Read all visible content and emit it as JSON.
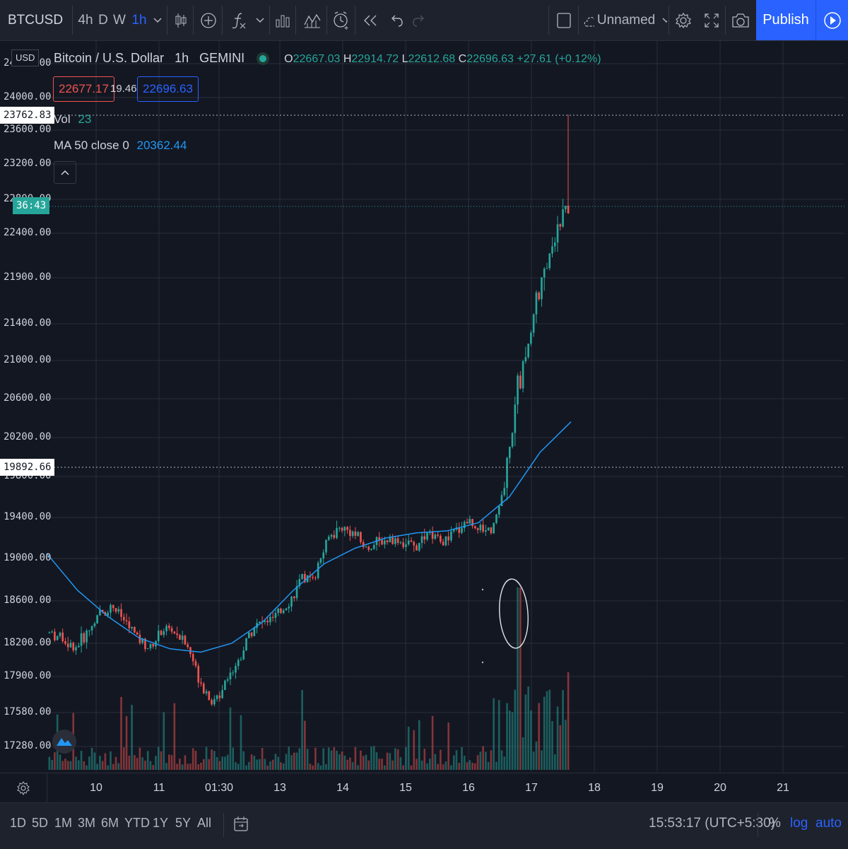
{
  "toolbar": {
    "symbol": "BTCUSD",
    "timeframes": [
      "4h",
      "D",
      "W",
      "1h"
    ],
    "active_timeframe": "1h",
    "icons": [
      "chevron-down-icon",
      "candles-icon",
      "add-compare-icon",
      "indicators-icon",
      "chevron-down-icon",
      "bar-chart-icon",
      "templates-icon",
      "alert-icon",
      "replay-icon",
      "undo-icon",
      "redo-icon"
    ],
    "layout_name": "Unnamed",
    "publish_label": "Publish"
  },
  "legend": {
    "title": "Bitcoin / U.S. Dollar",
    "interval": "1h",
    "exchange": "GEMINI",
    "o_label": "O",
    "o_value": "22667.03",
    "h_label": "H",
    "h_value": "22914.72",
    "l_label": "L",
    "l_value": "22612.68",
    "c_label": "C",
    "c_value": "22696.63",
    "change": "+27.61 (+0.12%)",
    "bid": "22677.17",
    "spread": "19.46",
    "ask": "22696.63",
    "vol_label": "Vol",
    "vol_value": "23",
    "ma_label": "MA 50 close 0",
    "ma_value": "20362.44"
  },
  "price_axis": {
    "currency": "USD",
    "ticks": [
      "24400.00",
      "24000.00",
      "23600.00",
      "23200.00",
      "22800.00",
      "22400.00",
      "21900.00",
      "21400.00",
      "21000.00",
      "20600.00",
      "20200.00",
      "19800.00",
      "19400.00",
      "19000.00",
      "18600.00",
      "18200.00",
      "17900.00",
      "17580.00",
      "17280.00"
    ],
    "high_marker": "23762.83",
    "low_marker": "19892.66",
    "countdown": "36:43"
  },
  "time_axis": {
    "labels": [
      "10",
      "11",
      "01:30",
      "13",
      "14",
      "15",
      "16",
      "17",
      "18",
      "19",
      "20",
      "21"
    ]
  },
  "bottom": {
    "ranges": [
      "1D",
      "5D",
      "1M",
      "3M",
      "6M",
      "YTD",
      "1Y",
      "5Y",
      "All"
    ],
    "clock": "15:53:17 (UTC+5:30)",
    "percent_label": "%",
    "log_label": "log",
    "auto_label": "auto"
  },
  "colors": {
    "up": "#26a69a",
    "down": "#ef5350",
    "ma": "#2196f3",
    "accent": "#2962ff",
    "countdown_bg": "#26a69a"
  },
  "chart_data": {
    "type": "candlestick",
    "title": "Bitcoin / U.S. Dollar",
    "interval": "1h",
    "exchange": "GEMINI",
    "x": [
      "10",
      "11",
      "01:30",
      "13",
      "14",
      "15",
      "16",
      "17",
      "18",
      "19",
      "20",
      "21"
    ],
    "ylim": [
      17100,
      24500
    ],
    "price_path": [
      18300,
      18250,
      18150,
      18300,
      18480,
      18550,
      18400,
      18250,
      18150,
      18350,
      18300,
      18150,
      17850,
      17650,
      17900,
      18050,
      18350,
      18400,
      18450,
      18600,
      18800,
      18850,
      19200,
      19300,
      19250,
      19100,
      19150,
      19200,
      19150,
      19100,
      19250,
      19150,
      19250,
      19380,
      19300,
      19300,
      19700,
      20700,
      21300,
      21900,
      22400,
      22700
    ],
    "ma50_path": [
      19050,
      18700,
      18450,
      18250,
      18150,
      18120,
      18200,
      18400,
      18700,
      18950,
      19100,
      19200,
      19250,
      19270,
      19350,
      19600,
      20050,
      20362.44
    ],
    "annotation": "hand-drawn circle around volume spike near 17"
  }
}
